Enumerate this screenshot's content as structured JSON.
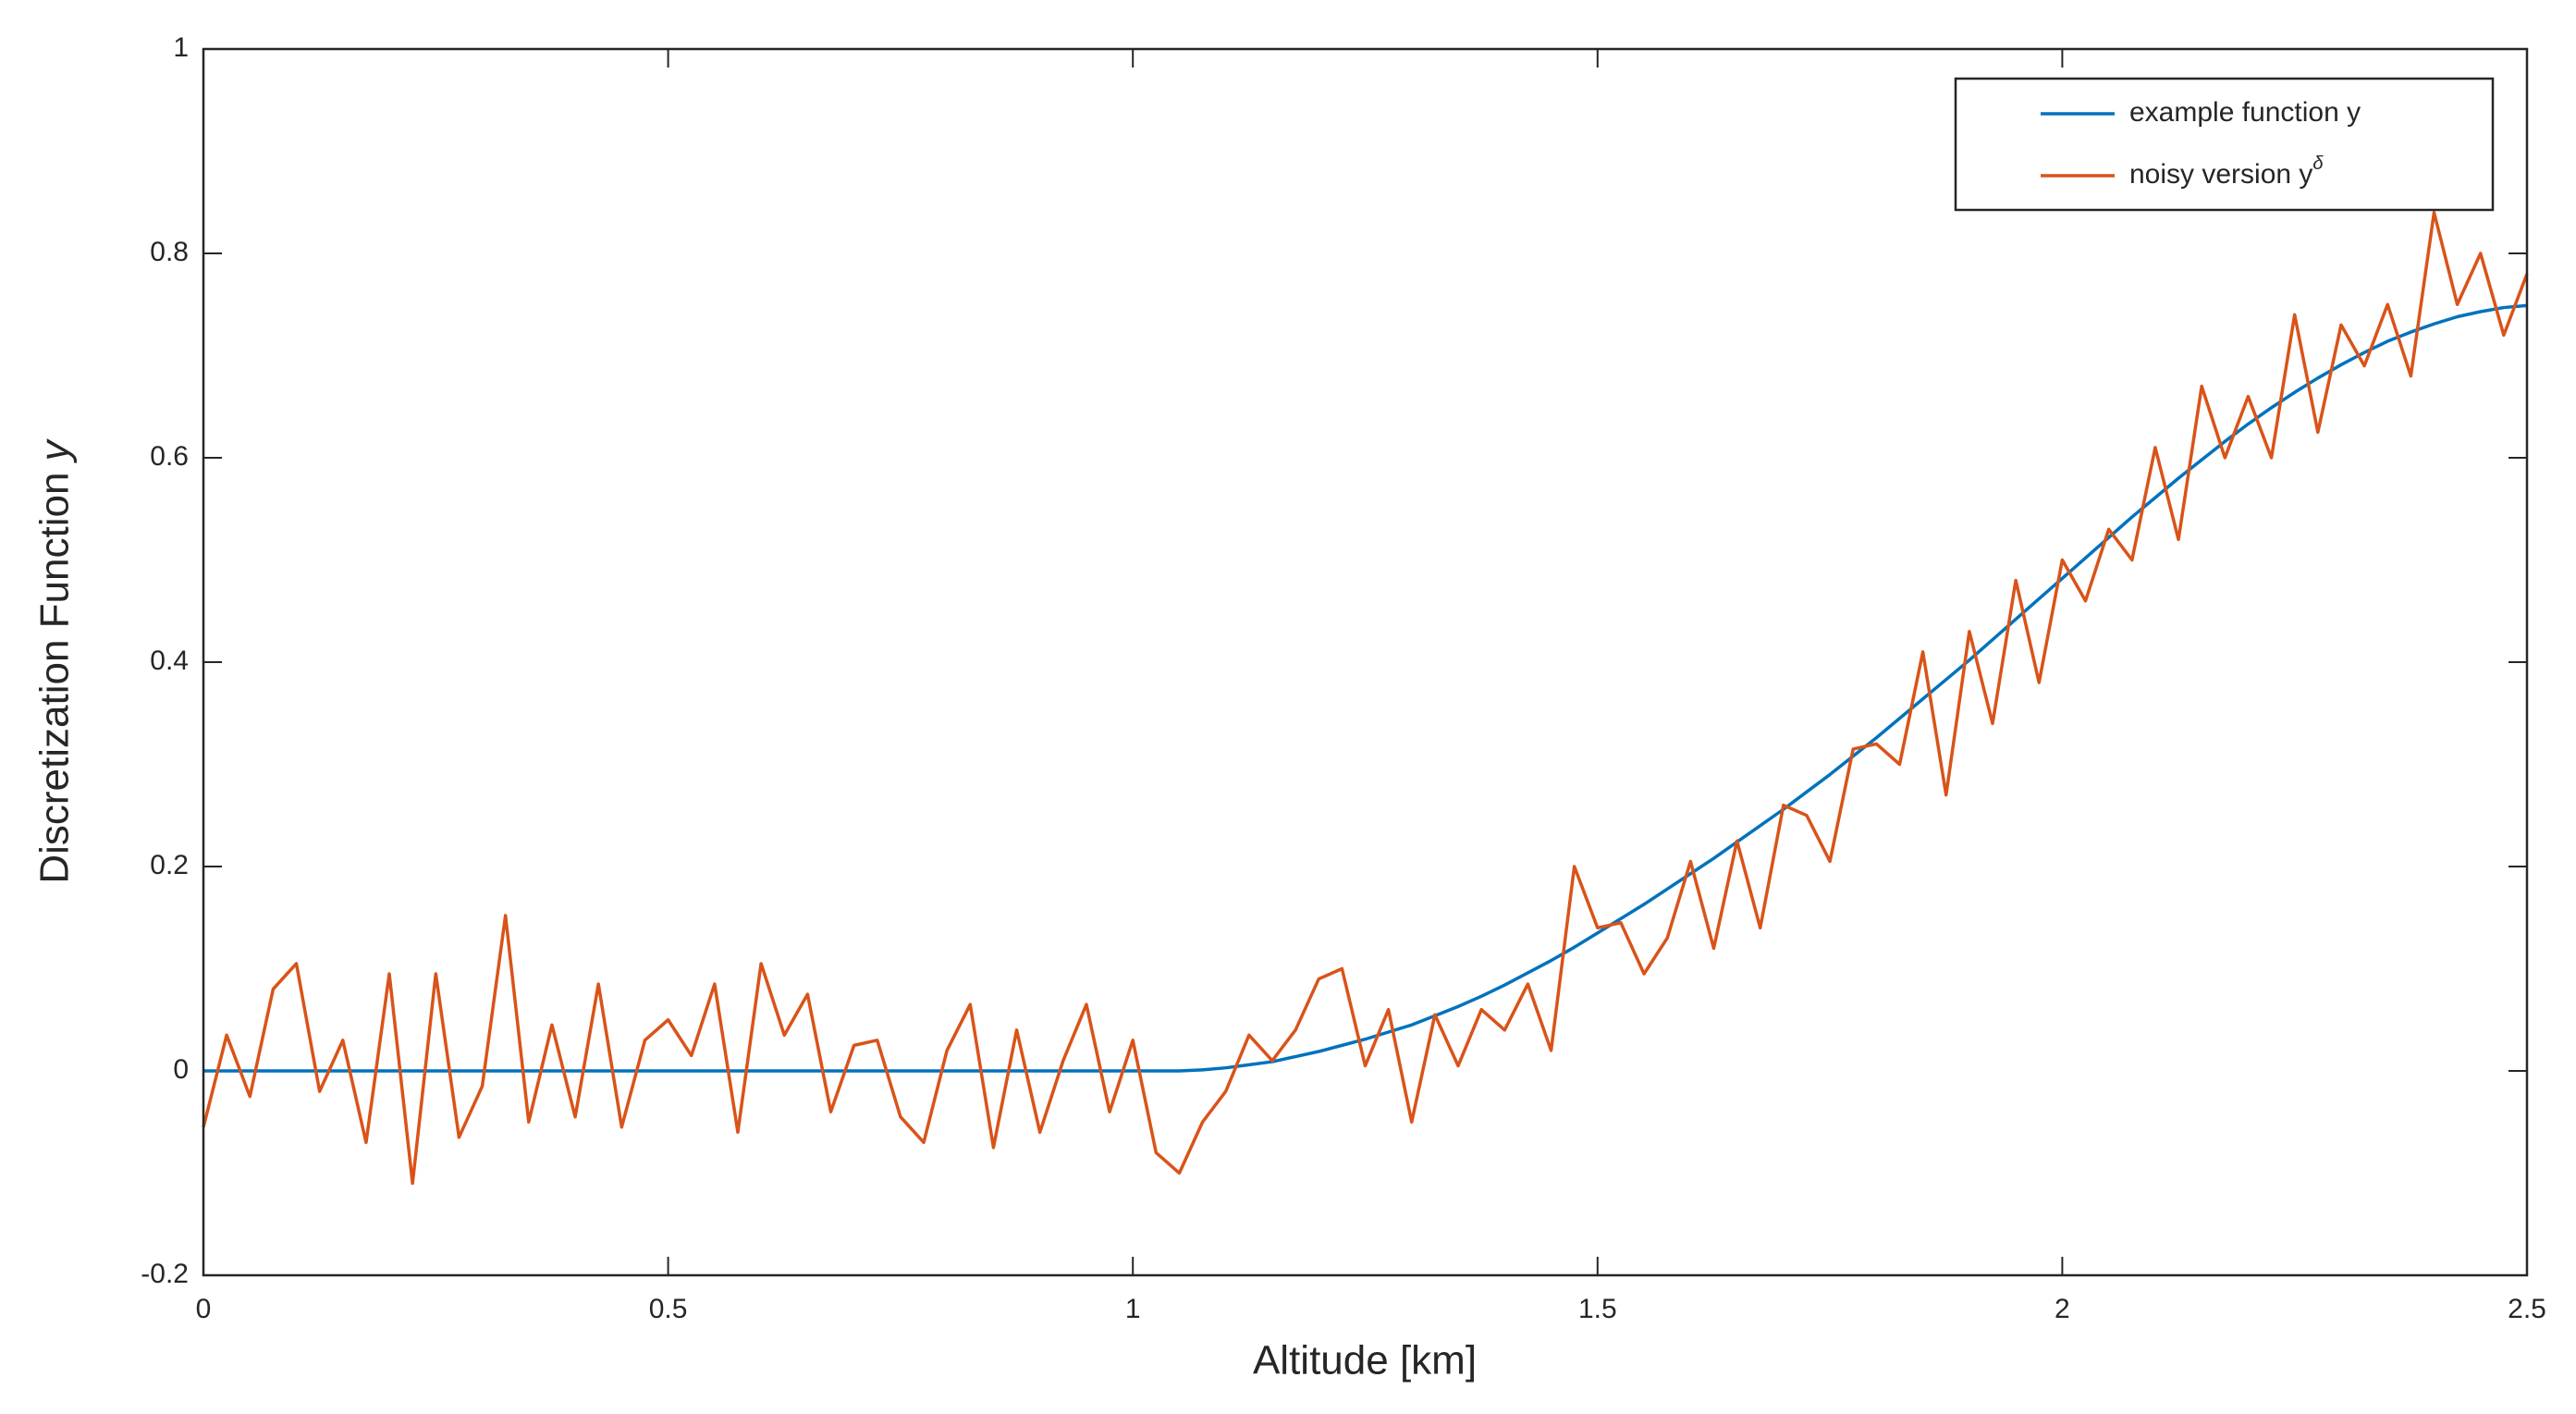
{
  "chart_data": {
    "type": "line",
    "xlabel": "Altitude [km]",
    "ylabel": "Discretization Function y",
    "xlim": [
      0,
      2.5
    ],
    "xticks": [
      0,
      0.5,
      1,
      1.5,
      2,
      2.5
    ],
    "ylim": [
      -0.2,
      1
    ],
    "yticks": [
      -0.2,
      0,
      0.2,
      0.4,
      0.6,
      0.8,
      1
    ],
    "legend_position": "upper right",
    "x": [
      0,
      0.025,
      0.05,
      0.075,
      0.1,
      0.125,
      0.15,
      0.175,
      0.2,
      0.225,
      0.25,
      0.275,
      0.3,
      0.325,
      0.35,
      0.375,
      0.4,
      0.425,
      0.45,
      0.475,
      0.5,
      0.525,
      0.55,
      0.575,
      0.6,
      0.625,
      0.65,
      0.675,
      0.7,
      0.725,
      0.75,
      0.775,
      0.8,
      0.825,
      0.85,
      0.875,
      0.9,
      0.925,
      0.95,
      0.975,
      1,
      1.025,
      1.05,
      1.075,
      1.1,
      1.125,
      1.15,
      1.175,
      1.2,
      1.225,
      1.25,
      1.275,
      1.3,
      1.325,
      1.35,
      1.375,
      1.4,
      1.425,
      1.45,
      1.475,
      1.5,
      1.525,
      1.55,
      1.575,
      1.6,
      1.625,
      1.65,
      1.675,
      1.7,
      1.725,
      1.75,
      1.775,
      1.8,
      1.825,
      1.85,
      1.875,
      1.9,
      1.925,
      1.95,
      1.975,
      2,
      2.025,
      2.05,
      2.075,
      2.1,
      2.125,
      2.15,
      2.175,
      2.2,
      2.225,
      2.25,
      2.275,
      2.3,
      2.325,
      2.35,
      2.375,
      2.4,
      2.425,
      2.45,
      2.475,
      2.5
    ],
    "series": [
      {
        "name": "example function y",
        "color": "#0072bd",
        "values": [
          0,
          0,
          0,
          0,
          0,
          0,
          0,
          0,
          0,
          0,
          0,
          0,
          0,
          0,
          0,
          0,
          0,
          0,
          0,
          0,
          0,
          0,
          0,
          0,
          0,
          0,
          0,
          0,
          0,
          0,
          0,
          0,
          0,
          0,
          0,
          0,
          0,
          0,
          0,
          0,
          0,
          0,
          0,
          0.001,
          0.003,
          0.006,
          0.009,
          0.014,
          0.019,
          0.025,
          0.031,
          0.038,
          0.045,
          0.054,
          0.063,
          0.073,
          0.084,
          0.096,
          0.108,
          0.121,
          0.135,
          0.149,
          0.163,
          0.178,
          0.193,
          0.208,
          0.224,
          0.24,
          0.256,
          0.273,
          0.29,
          0.308,
          0.326,
          0.345,
          0.364,
          0.383,
          0.402,
          0.422,
          0.442,
          0.462,
          0.482,
          0.502,
          0.522,
          0.542,
          0.561,
          0.58,
          0.598,
          0.616,
          0.633,
          0.649,
          0.664,
          0.678,
          0.691,
          0.703,
          0.714,
          0.723,
          0.731,
          0.738,
          0.743,
          0.747,
          0.749
        ]
      },
      {
        "name": "noisy version yδ",
        "color": "#d95319",
        "values": [
          -0.055,
          0.035,
          -0.025,
          0.08,
          0.105,
          -0.02,
          0.03,
          -0.07,
          0.095,
          -0.11,
          0.095,
          -0.065,
          -0.015,
          0.152,
          -0.05,
          0.045,
          -0.045,
          0.085,
          -0.055,
          0.03,
          0.05,
          0.015,
          0.085,
          -0.06,
          0.105,
          0.035,
          0.075,
          -0.04,
          0.025,
          0.03,
          -0.045,
          -0.07,
          0.02,
          0.065,
          -0.075,
          0.04,
          -0.06,
          0.01,
          0.065,
          -0.04,
          0.03,
          -0.08,
          -0.1,
          -0.05,
          -0.02,
          0.035,
          0.01,
          0.04,
          0.09,
          0.1,
          0.005,
          0.06,
          -0.05,
          0.055,
          0.005,
          0.06,
          0.04,
          0.085,
          0.02,
          0.2,
          0.14,
          0.145,
          0.095,
          0.13,
          0.205,
          0.12,
          0.225,
          0.14,
          0.26,
          0.25,
          0.205,
          0.315,
          0.32,
          0.3,
          0.41,
          0.27,
          0.43,
          0.34,
          0.48,
          0.38,
          0.5,
          0.46,
          0.53,
          0.5,
          0.61,
          0.52,
          0.67,
          0.6,
          0.66,
          0.6,
          0.74,
          0.625,
          0.73,
          0.69,
          0.75,
          0.68,
          0.84,
          0.75,
          0.8,
          0.72,
          0.78
        ]
      }
    ]
  }
}
